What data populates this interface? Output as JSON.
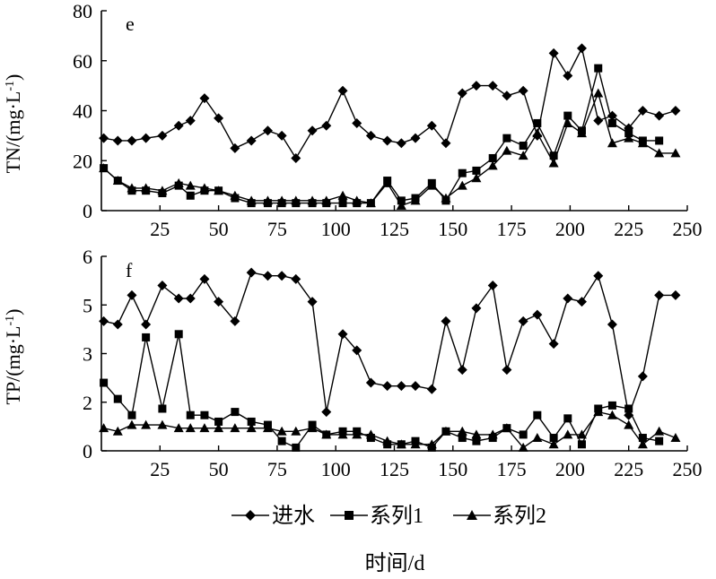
{
  "chart_data": [
    {
      "type": "line",
      "panel_label": "e",
      "ylabel": "TN/(mg·L-1)",
      "ylim": [
        0,
        80
      ],
      "yticks": [
        "0",
        "20",
        "40",
        "60",
        "80"
      ],
      "xlim": [
        0,
        250
      ],
      "xticks": [
        "25",
        "50",
        "75",
        "100",
        "125",
        "150",
        "175",
        "200",
        "225",
        "250"
      ],
      "grid": false,
      "series": [
        {
          "name": "进水",
          "marker": "diamond",
          "x": [
            1,
            7,
            13,
            19,
            26,
            33,
            38,
            44,
            50,
            57,
            64,
            71,
            77,
            83,
            90,
            96,
            103,
            109,
            115,
            122,
            128,
            134,
            141,
            147,
            154,
            160,
            167,
            173,
            180,
            186,
            193,
            199,
            205,
            212,
            218,
            225,
            231,
            238,
            245
          ],
          "y": [
            29,
            28,
            28,
            29,
            30,
            34,
            36,
            45,
            37,
            25,
            28,
            32,
            30,
            21,
            32,
            34,
            48,
            35,
            30,
            28,
            27,
            29,
            34,
            27,
            47,
            50,
            50,
            46,
            48,
            30,
            63,
            54,
            65,
            36,
            38,
            33,
            40,
            38,
            40
          ]
        },
        {
          "name": "系列1",
          "marker": "square",
          "x": [
            1,
            7,
            13,
            19,
            26,
            33,
            38,
            44,
            50,
            57,
            64,
            71,
            77,
            83,
            90,
            96,
            103,
            109,
            115,
            122,
            128,
            134,
            141,
            147,
            154,
            160,
            167,
            173,
            180,
            186,
            193,
            199,
            205,
            212,
            218,
            225,
            231,
            238
          ],
          "y": [
            17,
            12,
            8,
            8,
            7,
            10,
            6,
            8,
            8,
            5,
            3,
            3,
            3,
            3,
            3,
            3,
            3,
            3,
            3,
            12,
            4,
            5,
            11,
            4,
            15,
            16,
            21,
            29,
            26,
            35,
            22,
            38,
            32,
            57,
            35,
            31,
            28,
            28
          ]
        },
        {
          "name": "系列2",
          "marker": "triangle",
          "x": [
            1,
            7,
            13,
            19,
            26,
            33,
            38,
            44,
            50,
            57,
            64,
            71,
            77,
            83,
            90,
            96,
            103,
            109,
            115,
            122,
            128,
            134,
            141,
            147,
            154,
            160,
            167,
            173,
            180,
            186,
            193,
            199,
            205,
            212,
            218,
            225,
            231,
            238,
            245
          ],
          "y": [
            17,
            12,
            9,
            9,
            8,
            11,
            10,
            9,
            8,
            6,
            4,
            4,
            4,
            4,
            4,
            4,
            6,
            4,
            3,
            11,
            2,
            4,
            10,
            5,
            10,
            13,
            18,
            24,
            22,
            31,
            19,
            35,
            31,
            47,
            27,
            29,
            27,
            23,
            23
          ]
        }
      ]
    },
    {
      "type": "line",
      "panel_label": "f",
      "ylabel": "TP/(mg·L-1)",
      "ylim": [
        0,
        6
      ],
      "yticks": [
        "0",
        "2",
        "3",
        "5",
        "6"
      ],
      "xlim": [
        0,
        250
      ],
      "xticks": [
        "25",
        "50",
        "75",
        "100",
        "125",
        "150",
        "175",
        "200",
        "225",
        "250"
      ],
      "grid": false,
      "series": [
        {
          "name": "进水",
          "marker": "diamond",
          "x": [
            1,
            7,
            13,
            19,
            26,
            33,
            38,
            44,
            50,
            57,
            64,
            71,
            77,
            83,
            90,
            96,
            103,
            109,
            115,
            122,
            128,
            134,
            141,
            147,
            154,
            160,
            167,
            173,
            180,
            186,
            193,
            199,
            205,
            212,
            218,
            225,
            231,
            238,
            245
          ],
          "y": [
            4.0,
            3.9,
            4.8,
            3.9,
            5.1,
            4.7,
            4.7,
            5.3,
            4.6,
            4.0,
            5.5,
            5.4,
            5.4,
            5.3,
            4.6,
            1.2,
            3.6,
            3.1,
            2.1,
            2.0,
            2.0,
            2.0,
            1.9,
            4.0,
            2.5,
            4.4,
            5.1,
            2.5,
            4.0,
            4.2,
            3.3,
            4.7,
            4.6,
            5.4,
            3.9,
            1.1,
            2.3,
            4.8,
            4.8
          ]
        },
        {
          "name": "系列1",
          "marker": "square",
          "x": [
            1,
            7,
            13,
            19,
            26,
            33,
            38,
            44,
            50,
            57,
            64,
            71,
            77,
            83,
            90,
            96,
            103,
            109,
            115,
            122,
            128,
            134,
            141,
            147,
            154,
            160,
            167,
            173,
            180,
            186,
            193,
            199,
            205,
            212,
            218,
            225,
            231,
            238
          ],
          "y": [
            2.1,
            1.6,
            1.1,
            3.5,
            1.3,
            3.6,
            1.1,
            1.1,
            0.9,
            1.2,
            0.9,
            0.8,
            0.3,
            0.1,
            0.8,
            0.5,
            0.6,
            0.6,
            0.4,
            0.2,
            0.2,
            0.3,
            0.1,
            0.6,
            0.4,
            0.3,
            0.4,
            0.7,
            0.5,
            1.1,
            0.4,
            1.0,
            0.2,
            1.3,
            1.4,
            1.3,
            0.4,
            0.3
          ]
        },
        {
          "name": "系列2",
          "marker": "triangle",
          "x": [
            1,
            7,
            13,
            19,
            26,
            33,
            38,
            44,
            50,
            57,
            64,
            71,
            77,
            83,
            90,
            96,
            103,
            109,
            115,
            122,
            128,
            134,
            141,
            147,
            154,
            160,
            167,
            173,
            180,
            186,
            193,
            199,
            205,
            212,
            218,
            225,
            231,
            238,
            245
          ],
          "y": [
            0.7,
            0.6,
            0.8,
            0.8,
            0.8,
            0.7,
            0.7,
            0.7,
            0.7,
            0.7,
            0.7,
            0.7,
            0.6,
            0.6,
            0.7,
            0.5,
            0.5,
            0.5,
            0.5,
            0.3,
            0.2,
            0.2,
            0.2,
            0.6,
            0.6,
            0.5,
            0.5,
            0.7,
            0.1,
            0.4,
            0.2,
            0.5,
            0.5,
            1.2,
            1.1,
            0.8,
            0.2,
            0.6,
            0.4
          ]
        }
      ]
    }
  ],
  "legend": {
    "placement": "bottom-center",
    "items": [
      {
        "label": "进水",
        "marker": "diamond"
      },
      {
        "label": "系列1",
        "marker": "square"
      },
      {
        "label": "系列2",
        "marker": "triangle"
      }
    ]
  },
  "xlabel": "时间/d"
}
